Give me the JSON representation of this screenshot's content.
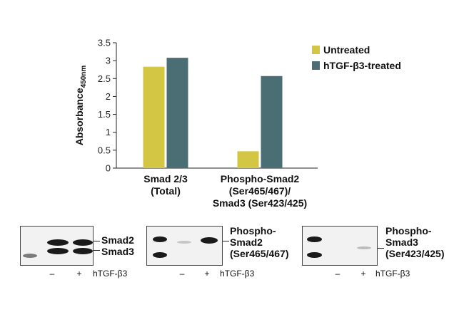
{
  "chart_data": {
    "type": "bar",
    "title": "",
    "ylabel_main": "Absorbance",
    "ylabel_sub": "450nm",
    "xlabel": "",
    "ylim": [
      0,
      3.5
    ],
    "yticks": [
      "0",
      "0.5",
      "1",
      "1.5",
      "2",
      "2.5",
      "3",
      "3.5"
    ],
    "ytick_values": [
      0,
      0.5,
      1,
      1.5,
      2,
      2.5,
      3,
      3.5
    ],
    "categories": [
      {
        "lines": [
          "Smad 2/3",
          "(Total)"
        ]
      },
      {
        "lines": [
          "Phospho-Smad2",
          "(Ser465/467)/",
          "Smad3 (Ser423/425)"
        ]
      }
    ],
    "series": [
      {
        "name": "Untreated",
        "color": "#d4c645",
        "values": [
          2.83,
          0.47
        ]
      },
      {
        "name": "hTGF-β3-treated",
        "color": "#4a6e73",
        "values": [
          3.08,
          2.57
        ]
      }
    ],
    "legend": "top-right",
    "grid": false
  },
  "blots": [
    {
      "labels": [
        "Smad2",
        "Smad3"
      ],
      "lane_minus": "–",
      "lane_plus": "+",
      "treatment": "hTGF-β3"
    },
    {
      "labels": [
        "Phospho-",
        "Smad2",
        "(Ser465/467)"
      ],
      "lane_minus": "–",
      "lane_plus": "+",
      "treatment": "hTGF-β3"
    },
    {
      "labels": [
        "Phospho-",
        "Smad3",
        "(Ser423/425)"
      ],
      "lane_minus": "–",
      "lane_plus": "+",
      "treatment": "hTGF-β3"
    }
  ]
}
